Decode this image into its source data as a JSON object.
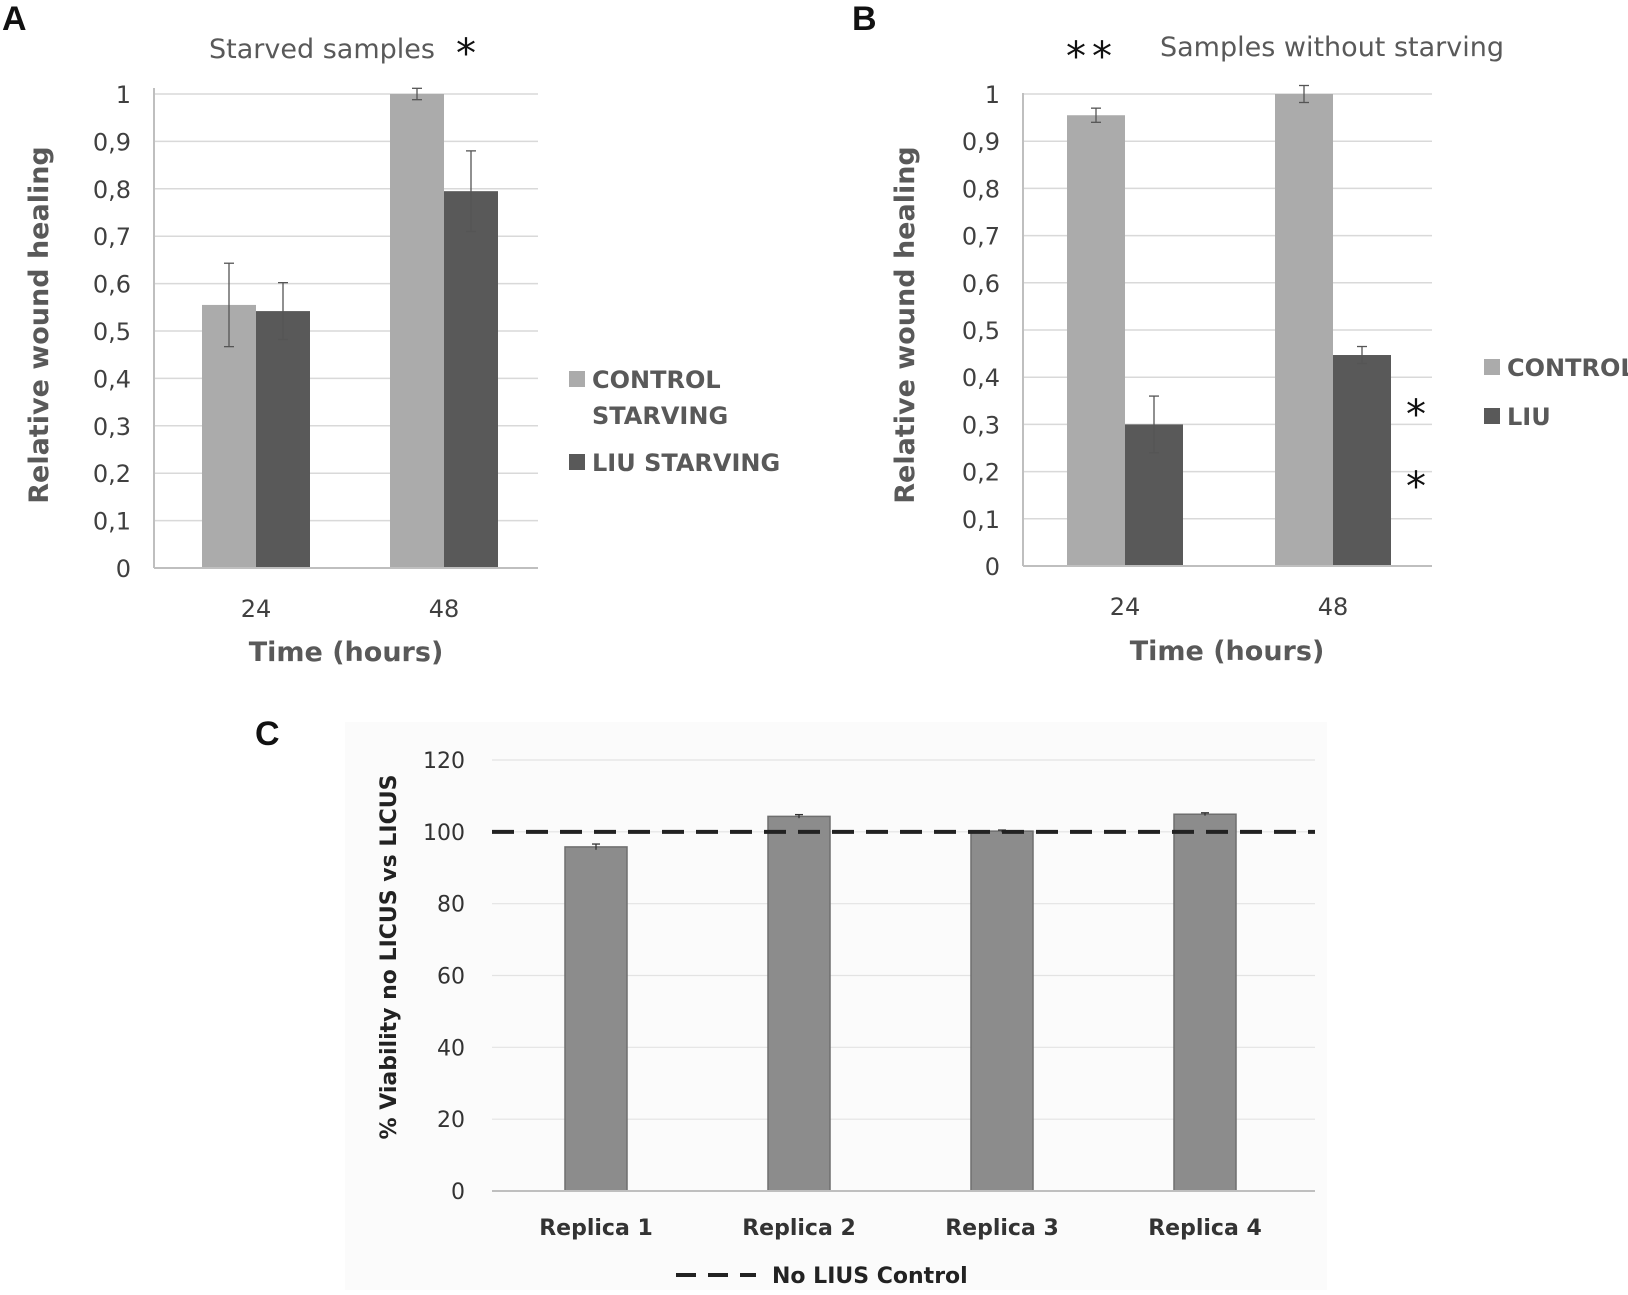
{
  "chart_data": [
    {
      "panel": "A",
      "type": "bar",
      "title": "Starved samples",
      "title_annotation": "*",
      "xlabel": "Time (hours)",
      "ylabel": "Relative wound healing",
      "categories": [
        "24",
        "48"
      ],
      "ylim": [
        0,
        1
      ],
      "yticks": [
        "0",
        "0,1",
        "0,2",
        "0,3",
        "0,4",
        "0,5",
        "0,6",
        "0,7",
        "0,8",
        "0,9",
        "1"
      ],
      "grid": true,
      "legend_position": "right",
      "series": [
        {
          "name": "CONTROL STARVING",
          "legend_lines": [
            "CONTROL",
            "STARVING"
          ],
          "color": "#ababab",
          "values": [
            0.555,
            1.0
          ],
          "errors": [
            0.088,
            0.012
          ]
        },
        {
          "name": "LIU STARVING",
          "legend_lines": [
            "LIU STARVING"
          ],
          "color": "#595959",
          "values": [
            0.542,
            0.795
          ],
          "errors": [
            0.06,
            0.085
          ]
        }
      ],
      "annotations": []
    },
    {
      "panel": "B",
      "type": "bar",
      "title": "Samples without starving",
      "title_annotation": "**",
      "xlabel": "Time (hours)",
      "ylabel": "Relative wound healing",
      "categories": [
        "24",
        "48"
      ],
      "ylim": [
        0,
        1
      ],
      "yticks": [
        "0",
        "0,1",
        "0,2",
        "0,3",
        "0,4",
        "0,5",
        "0,6",
        "0,7",
        "0,8",
        "0,9",
        "1"
      ],
      "grid": true,
      "legend_position": "right",
      "series": [
        {
          "name": "CONTROL",
          "legend_lines": [
            "CONTROL"
          ],
          "color": "#ababab",
          "values": [
            0.955,
            1.0
          ],
          "errors": [
            0.015,
            0.018
          ]
        },
        {
          "name": "LIU",
          "legend_lines": [
            "LIU"
          ],
          "color": "#595959",
          "values": [
            0.3,
            0.447
          ],
          "errors": [
            0.06,
            0.018
          ]
        }
      ],
      "annotations": [
        "*",
        "*"
      ]
    },
    {
      "panel": "C",
      "type": "bar",
      "title": "",
      "xlabel": "",
      "ylabel": "% Viability no LICUS vs LICUS",
      "categories": [
        "Replica 1",
        "Replica 2",
        "Replica 3",
        "Replica 4"
      ],
      "ylim": [
        0,
        120
      ],
      "yticks": [
        "0",
        "20",
        "40",
        "60",
        "80",
        "100",
        "120"
      ],
      "grid": true,
      "legend_position": "bottom",
      "series": [
        {
          "name": "% Viability",
          "color": "#8c8c8c",
          "values": [
            95.8,
            104.3,
            100.2,
            104.9
          ],
          "errors": [
            0.8,
            0.5,
            0.3,
            0.4
          ]
        }
      ],
      "reference_line": {
        "value": 100,
        "style": "dashed",
        "label": "No LIUS Control"
      }
    }
  ]
}
